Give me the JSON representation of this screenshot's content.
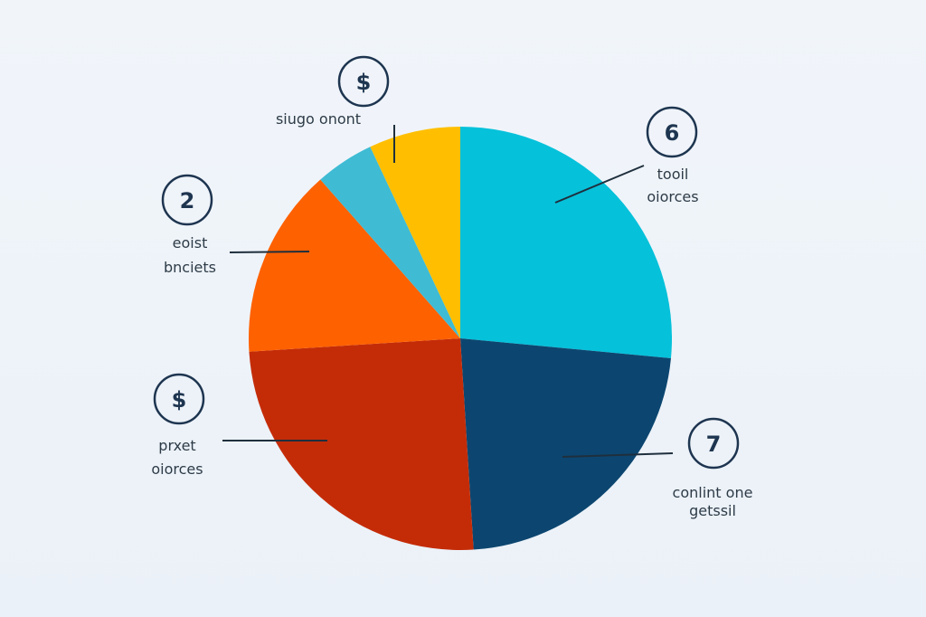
{
  "chart_data": {
    "type": "pie",
    "title": "",
    "start_angle_deg": 0,
    "direction": "clockwise",
    "slices": [
      {
        "value": 26.5,
        "color": "#06c1da"
      },
      {
        "value": 22.5,
        "color": "#0c4670"
      },
      {
        "value": 25.0,
        "color": "#c42c08"
      },
      {
        "value": 14.5,
        "color": "#fe6100"
      },
      {
        "value": 4.5,
        "color": "#3fbbd4"
      },
      {
        "value": 7.0,
        "color": "#ffbf00"
      }
    ],
    "annotations": [
      {
        "badge": "6",
        "lines": [
          "tooil",
          "oiorces"
        ]
      },
      {
        "badge": "7",
        "lines": [
          "conlint one",
          "getssil"
        ]
      },
      {
        "badge": "$",
        "lines": [
          "prxet",
          "oiorces"
        ]
      },
      {
        "badge": "2",
        "lines": [
          "eoist",
          "bnciets"
        ]
      },
      {
        "badge": "$",
        "lines": [
          "siugo onont"
        ]
      }
    ]
  }
}
